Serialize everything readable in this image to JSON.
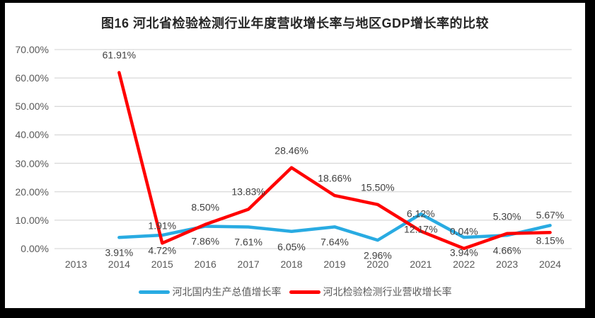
{
  "chart_data": {
    "type": "line",
    "title": "图16 河北省检验检测行业年度营收增长率与地区GDP增长率的比较",
    "categories": [
      "2013",
      "2014",
      "2015",
      "2016",
      "2017",
      "2018",
      "2019",
      "2020",
      "2021",
      "2022",
      "2023",
      "2024"
    ],
    "series": [
      {
        "key": "gdp-growth",
        "name": "河北国内生产总值增长率",
        "color": "#29ABE2",
        "label_position": "below",
        "values": [
          null,
          3.91,
          4.72,
          7.86,
          7.61,
          6.05,
          7.64,
          2.96,
          12.17,
          3.94,
          4.66,
          8.15
        ]
      },
      {
        "key": "revenue-growth",
        "name": "河北检验检测行业营收增长率",
        "color": "#FF0000",
        "label_position": "above",
        "values": [
          null,
          61.91,
          1.91,
          8.5,
          13.83,
          28.46,
          18.66,
          15.5,
          6.12,
          0.04,
          5.3,
          5.67
        ]
      }
    ],
    "ylim": [
      0,
      70
    ],
    "ytick_step": 10,
    "ytick_decimals": 2,
    "ytick_suffix": "%",
    "data_label_decimals": 2,
    "data_label_suffix": "%",
    "grid": true,
    "legend_position": "bottom"
  },
  "colors": {
    "frame": "#000000",
    "chart_background": "#FFFFFF",
    "gridline": "#D9D9D9",
    "axis_text": "#595959",
    "data_label_text": "#404040",
    "title_text": "#262626",
    "legend_text": "#595959"
  }
}
